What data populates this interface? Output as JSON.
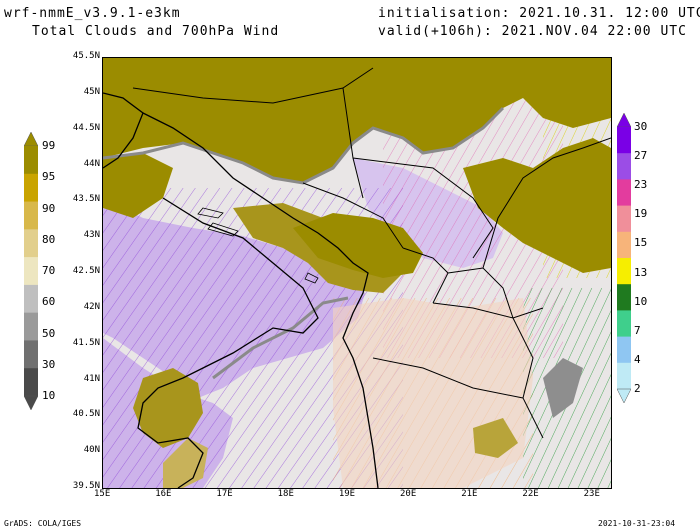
{
  "header": {
    "model": "wrf-nmmE_v3.9.1-e3km",
    "product": "Total Clouds and 700hPa Wind",
    "init": "initialisation: 2021.10.31.  12:00 UTC",
    "valid": "valid(+106h): 2021.NOV.04 22:00 UTC"
  },
  "map": {
    "lat_labels": [
      "45.5N",
      "45N",
      "44.5N",
      "44N",
      "43.5N",
      "43N",
      "42.5N",
      "42N",
      "41.5N",
      "41N",
      "40.5N",
      "40N",
      "39.5N"
    ],
    "lon_labels": [
      "15E",
      "16E",
      "17E",
      "18E",
      "19E",
      "20E",
      "21E",
      "22E",
      "23E"
    ],
    "lat_range": [
      39.5,
      45.5
    ],
    "lon_range": [
      15,
      23.3
    ],
    "colors": {
      "sea": "#c9a7e6",
      "land": "#ececec",
      "cloud_high": "#9b8c00",
      "cloud_mid": "#c8b25a",
      "cloud_low": "#d9c79a"
    }
  },
  "cloud_scale": {
    "labels": [
      "99",
      "95",
      "90",
      "80",
      "70",
      "60",
      "50",
      "30",
      "10"
    ],
    "colors": [
      "#9b8c00",
      "#c9a400",
      "#d8b84a",
      "#e2cf8c",
      "#ede6c0",
      "#bfbfbf",
      "#9a9a9a",
      "#707070",
      "#4a4a4a"
    ]
  },
  "wind_scale": {
    "labels": [
      "30",
      "27",
      "23",
      "19",
      "15",
      "13",
      "10",
      "7",
      "4",
      "2"
    ],
    "colors": [
      "#7a00e6",
      "#9b4de6",
      "#e33c9e",
      "#f08f9a",
      "#f7b47a",
      "#f6ee00",
      "#1f7a1f",
      "#3fcf8c",
      "#8fc6f2",
      "#bfeaf5"
    ]
  },
  "footer": {
    "left": "GrADS: COLA/IGES",
    "right": "2021-10-31-23:04"
  }
}
